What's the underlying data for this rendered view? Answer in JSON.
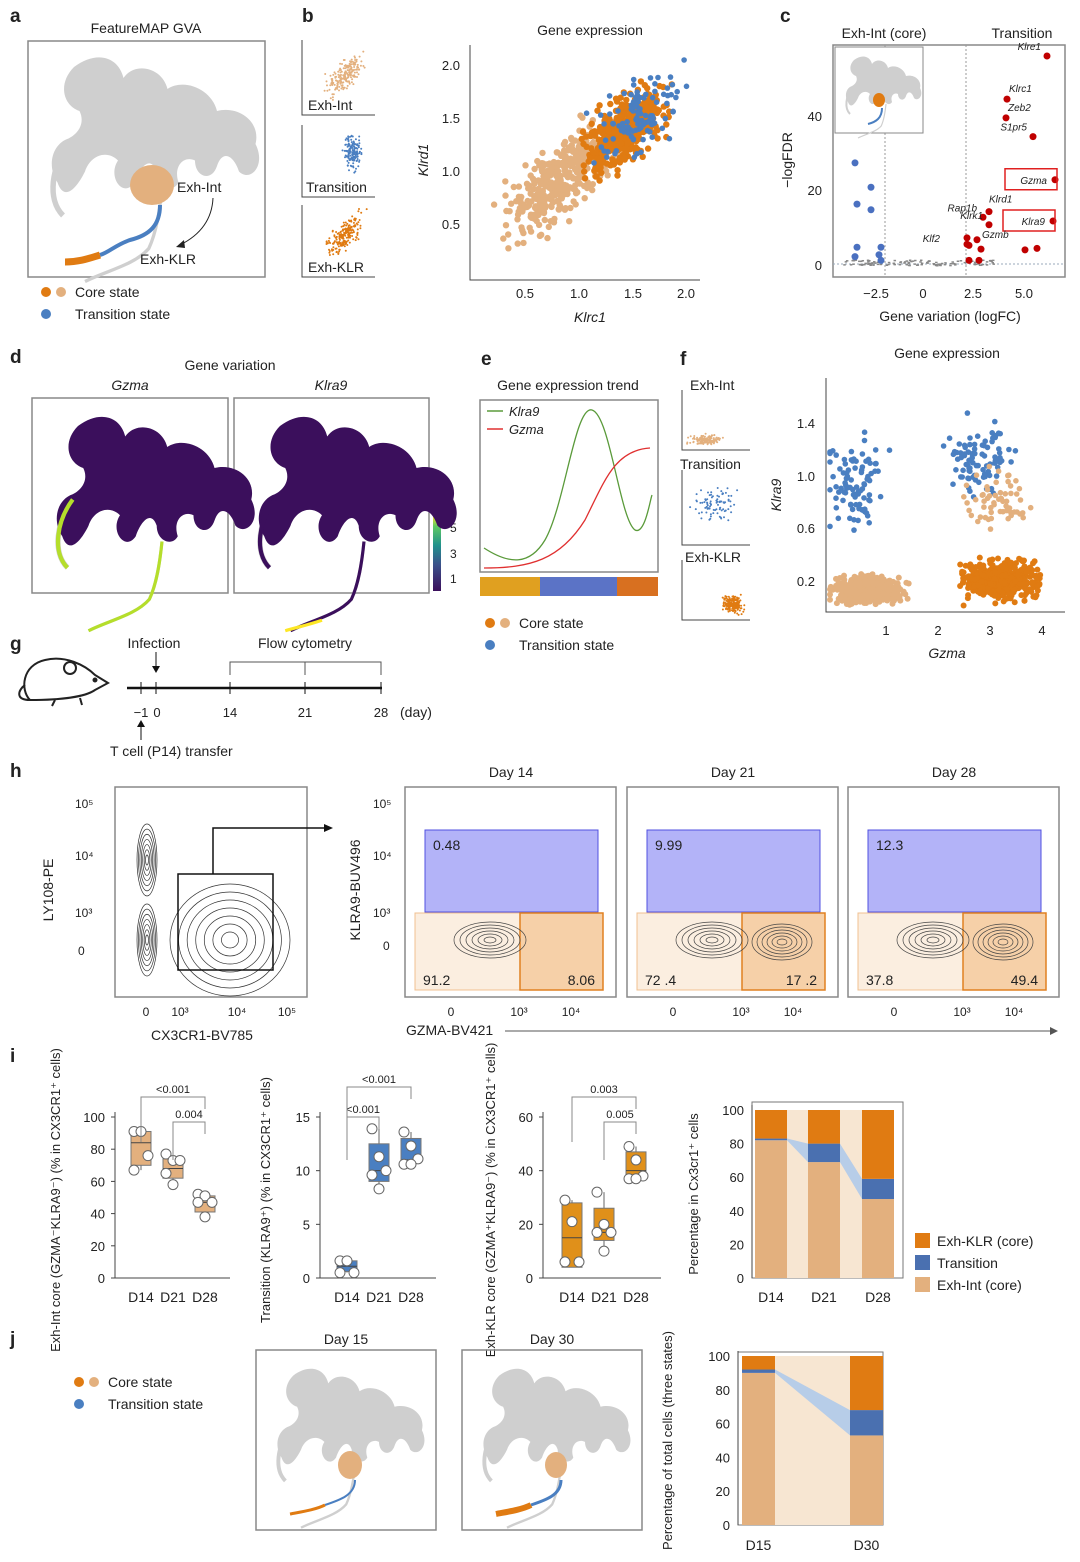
{
  "colors": {
    "core_dark": "#e07b12",
    "core_light": "#e3b07e",
    "transition": "#4a7fc1",
    "volcano_up": "#c00000",
    "volcano_down": "#4a70c0",
    "klra9_line": "#5a9a3a",
    "gzma_line": "#e03030"
  },
  "panel_labels": {
    "a": "a",
    "b": "b",
    "c": "c",
    "d": "d",
    "e": "e",
    "f": "f",
    "g": "g",
    "h": "h",
    "i": "i",
    "j": "j"
  },
  "a": {
    "title": "FeatureMAP GVA",
    "label_int": "Exh-Int",
    "label_klr": "Exh-KLR",
    "legend": {
      "core": "Core state",
      "transition": "Transition state"
    }
  },
  "b": {
    "title": "Gene expression",
    "mini": [
      "Exh-Int",
      "Transition",
      "Exh-KLR"
    ],
    "xlabel": "Klrc1",
    "ylabel": "Klrd1",
    "xticks": [
      "0.5",
      "1.0",
      "1.5",
      "2.0"
    ],
    "yticks": [
      "2.0",
      "1.5",
      "1.0",
      "0.5"
    ]
  },
  "c": {
    "left_header": "Exh-Int (core)",
    "right_header": "Transition",
    "xlabel": "Gene variation (logFC)",
    "ylabel": "−logFDR",
    "xticks": [
      "−2.5",
      "0",
      "2.5",
      "5.0"
    ],
    "yticks": [
      "0",
      "20",
      "40"
    ]
  },
  "d": {
    "title": "Gene variation",
    "sub": [
      "Gzma",
      "Klra9"
    ],
    "colorbar_ticks": [
      "5",
      "3",
      "1"
    ]
  },
  "e": {
    "title": "Gene expression trend",
    "legend": [
      "Klra9",
      "Gzma"
    ],
    "legend_core": "Core state",
    "legend_transition": "Transition state"
  },
  "f": {
    "title": "Gene expression",
    "mini": [
      "Exh-Int",
      "Transition",
      "Exh-KLR"
    ],
    "xlabel": "Gzma",
    "ylabel": "Klra9",
    "xticks": [
      "1",
      "2",
      "3",
      "4"
    ],
    "yticks": [
      "1.4",
      "1.0",
      "0.6",
      "0.2"
    ]
  },
  "g": {
    "infection": "Infection",
    "flow": "Flow cytometry",
    "transfer": "T cell (P14) transfer",
    "ticks": [
      "−1",
      "0",
      "14",
      "21",
      "28"
    ],
    "unit": "(day)"
  },
  "h": {
    "gate": {
      "xlabel": "CX3CR1-BV785",
      "ylabel": "LY108-PE",
      "yticks": [
        "10⁵",
        "10⁴",
        "10³",
        "0"
      ],
      "xticks": [
        "0",
        "10³",
        "10⁴",
        "10⁵"
      ]
    },
    "ylabel": "KLRA9-BUV496",
    "xlabel": "GZMA-BV421",
    "yticks": [
      "10⁵",
      "10⁴",
      "10³",
      "0"
    ],
    "xticks": [
      "0",
      "10³",
      "10⁴"
    ],
    "panels": [
      {
        "title": "Day 14",
        "klra9_pos": "0.48",
        "gzma_neg": "91.2",
        "gzma_pos": "8.06"
      },
      {
        "title": "Day 21",
        "klra9_pos": "9.99",
        "gzma_neg": "72 .4",
        "gzma_pos": "17 .2"
      },
      {
        "title": "Day 28",
        "klra9_pos": "12.3",
        "gzma_neg": "37.8",
        "gzma_pos": "49.4"
      }
    ]
  },
  "i": {
    "legend": [
      "Exh-KLR (core)",
      "Transition",
      "Exh-Int (core)"
    ]
  },
  "j": {
    "legend": {
      "core": "Core state",
      "transition": "Transition state"
    },
    "umap_titles": [
      "Day 15",
      "Day 30"
    ]
  },
  "chart_data": [
    {
      "id": "c",
      "type": "scatter",
      "title": "",
      "xlabel": "Gene variation (logFC)",
      "ylabel": "−logFDR",
      "xlim": [
        -4.5,
        6.8
      ],
      "ylim": [
        0,
        57
      ],
      "labeled_points": [
        {
          "gene": "Klre1",
          "x": 6.2,
          "y": 56
        },
        {
          "gene": "Klrc1",
          "x": 4.2,
          "y": 44.5
        },
        {
          "gene": "Zeb2",
          "x": 4.15,
          "y": 39.5
        },
        {
          "gene": "S1pr5",
          "x": 5.5,
          "y": 34.5
        },
        {
          "gene": "Gzma",
          "x": 6.6,
          "y": 23,
          "boxed": true
        },
        {
          "gene": "Klra9",
          "x": 6.5,
          "y": 12,
          "boxed": true
        },
        {
          "gene": "Klrd1",
          "x": 3.3,
          "y": 14.5
        },
        {
          "gene": "Rap1b",
          "x": 3.0,
          "y": 13
        },
        {
          "gene": "Klrk1",
          "x": 3.3,
          "y": 11
        },
        {
          "gene": "Gzmb",
          "x": 2.7,
          "y": 7
        },
        {
          "gene": "Klf2",
          "x": 2.2,
          "y": 7.5
        }
      ],
      "other_up": [
        [
          2.3,
          5.5
        ],
        [
          2.2,
          5.8
        ],
        [
          2.9,
          4.5
        ],
        [
          2.3,
          1.5
        ],
        [
          2.8,
          1.5
        ],
        [
          5.1,
          4.3
        ],
        [
          5.7,
          4.7
        ]
      ],
      "down": [
        [
          -3.4,
          27.5
        ],
        [
          -2.6,
          21
        ],
        [
          -3.3,
          16.5
        ],
        [
          -2.6,
          15
        ],
        [
          -3.3,
          5
        ],
        [
          -2.1,
          5
        ],
        [
          -3.4,
          2.5
        ],
        [
          -2.2,
          3
        ],
        [
          -2.1,
          1.5
        ]
      ]
    },
    {
      "id": "e",
      "type": "line",
      "title": "Gene expression trend",
      "series": [
        {
          "name": "Klra9"
        },
        {
          "name": "Gzma"
        }
      ]
    },
    {
      "id": "i1",
      "type": "box",
      "ylabel": "Exh-Int core (GZMA⁻KLRA9⁻) (% in CX3CR1⁺ cells)",
      "categories": [
        "D14",
        "D21",
        "D28"
      ],
      "ylim": [
        0,
        100
      ],
      "yticks": [
        "0",
        "20",
        "40",
        "60",
        "80",
        "100"
      ],
      "boxes": [
        {
          "q1": 70,
          "median": 84,
          "q3": 91,
          "points": [
            91,
            91,
            76,
            67
          ]
        },
        {
          "q1": 62,
          "median": 68,
          "q3": 74,
          "points": [
            77,
            73,
            73,
            65,
            58
          ]
        },
        {
          "q1": 41,
          "median": 47,
          "q3": 51,
          "points": [
            52,
            51,
            47,
            47,
            38
          ]
        }
      ],
      "comparisons": [
        {
          "from": "D14",
          "to": "D28",
          "p": "<0.001"
        },
        {
          "from": "D21",
          "to": "D28",
          "p": "0.004"
        }
      ]
    },
    {
      "id": "i2",
      "type": "box",
      "ylabel": "Transition (KLRA9⁺) (% in CX3CR1⁺ cells)",
      "categories": [
        "D14",
        "D21",
        "D28"
      ],
      "ylim": [
        0,
        15
      ],
      "yticks": [
        "0",
        "5",
        "10",
        "15"
      ],
      "boxes": [
        {
          "q1": 0.6,
          "median": 1.1,
          "q3": 1.6,
          "points": [
            1.6,
            1.6,
            0.5,
            0.5
          ]
        },
        {
          "q1": 9,
          "median": 10,
          "q3": 12.5,
          "points": [
            13.9,
            11.3,
            10,
            9.6,
            8.3
          ]
        },
        {
          "q1": 10.9,
          "median": 11,
          "q3": 13,
          "points": [
            13.6,
            12.3,
            11.1,
            10.6,
            10.6
          ]
        }
      ],
      "comparisons": [
        {
          "from": "D14",
          "to": "D21",
          "p": "<0.001"
        },
        {
          "from": "D14",
          "to": "D28",
          "p": "<0.001"
        }
      ]
    },
    {
      "id": "i3",
      "type": "box",
      "ylabel": "Exh-KLR core (GZMA⁺KLRA9⁻) (% in CX3CR1⁺ cells)",
      "categories": [
        "D14",
        "D21",
        "D28"
      ],
      "ylim": [
        0,
        60
      ],
      "yticks": [
        "0",
        "20",
        "40",
        "60"
      ],
      "boxes": [
        {
          "q1": 4,
          "median": 15,
          "q3": 28,
          "points": [
            29,
            21,
            6,
            6
          ]
        },
        {
          "q1": 14,
          "median": 17,
          "q3": 26,
          "points": [
            32,
            20,
            17,
            17,
            10
          ]
        },
        {
          "q1": 38,
          "median": 40,
          "q3": 47,
          "points": [
            49,
            44,
            38,
            37,
            37
          ]
        }
      ],
      "comparisons": [
        {
          "from": "D14",
          "to": "D28",
          "p": "0.003"
        },
        {
          "from": "D21",
          "to": "D28",
          "p": "0.005"
        }
      ]
    },
    {
      "id": "i4",
      "type": "bar",
      "stacked": true,
      "ylabel": "Percentage in Cx3cr1⁺ cells",
      "categories": [
        "D14",
        "D21",
        "D28"
      ],
      "ylim": [
        0,
        100
      ],
      "yticks": [
        "0",
        "20",
        "40",
        "60",
        "80",
        "100"
      ],
      "series": [
        {
          "name": "Exh-Int (core)",
          "values": [
            82,
            69,
            47
          ]
        },
        {
          "name": "Transition",
          "values": [
            1,
            11,
            12
          ]
        },
        {
          "name": "Exh-KLR (core)",
          "values": [
            17,
            20,
            41
          ]
        }
      ],
      "legend": "right"
    },
    {
      "id": "j",
      "type": "bar",
      "stacked": true,
      "ylabel": "Percentage of total cells (three states)",
      "categories": [
        "D15",
        "D30"
      ],
      "ylim": [
        0,
        100
      ],
      "yticks": [
        "0",
        "20",
        "40",
        "60",
        "80",
        "100"
      ],
      "series": [
        {
          "name": "Exh-Int (core)",
          "values": [
            90,
            53
          ]
        },
        {
          "name": "Transition",
          "values": [
            2,
            15
          ]
        },
        {
          "name": "Exh-KLR (core)",
          "values": [
            8,
            32
          ]
        }
      ]
    }
  ]
}
